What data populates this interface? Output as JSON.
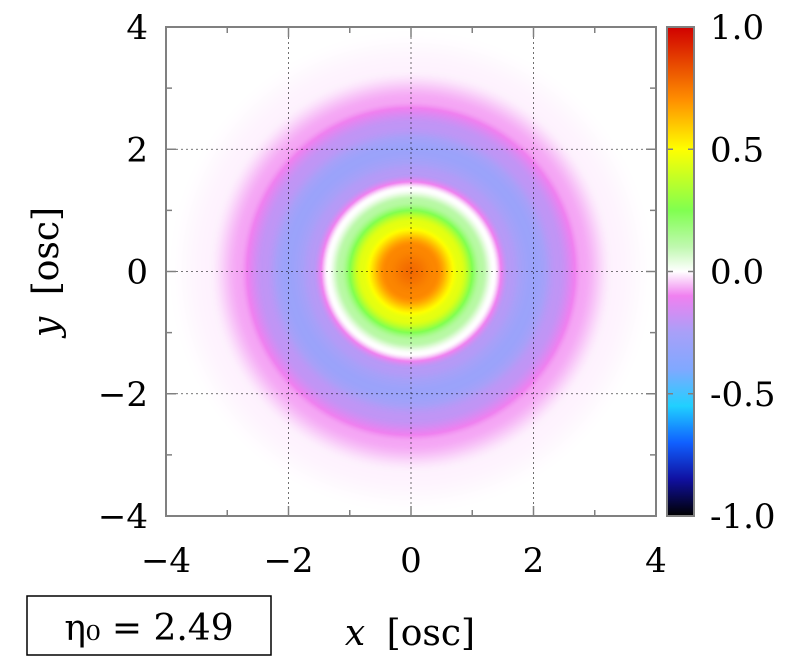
{
  "chart_data": {
    "type": "heatmap",
    "title": "",
    "xlabel": {
      "var": "x",
      "unit": "[osc]"
    },
    "ylabel": {
      "var": "y",
      "unit": "[osc]"
    },
    "xlim": [
      -4,
      4
    ],
    "ylim": [
      -4,
      4
    ],
    "x_ticks": [
      -4,
      -2,
      0,
      2,
      4
    ],
    "y_ticks": [
      -4,
      -2,
      0,
      2,
      4
    ],
    "x_tick_labels": [
      "−4",
      "−2",
      "0",
      "2",
      "4"
    ],
    "y_tick_labels": [
      "−4",
      "−2",
      "0",
      "2",
      "4"
    ],
    "grid": true,
    "colorbar": {
      "range": [
        -1.0,
        1.0
      ],
      "ticks": [
        1.0,
        0.5,
        0.0,
        -0.5,
        -1.0
      ],
      "tick_labels": [
        "1.0",
        "0.5",
        "0.0",
        "-0.5",
        "-1.0"
      ],
      "colors": [
        {
          "v": -1.0,
          "c": "#000000"
        },
        {
          "v": -0.85,
          "c": "#1010a0"
        },
        {
          "v": -0.7,
          "c": "#1060ff"
        },
        {
          "v": -0.55,
          "c": "#20d0ff"
        },
        {
          "v": -0.4,
          "c": "#80a8ff"
        },
        {
          "v": -0.25,
          "c": "#a8a0f8"
        },
        {
          "v": -0.1,
          "c": "#f080f0"
        },
        {
          "v": 0.0,
          "c": "#ffffff"
        },
        {
          "v": 0.1,
          "c": "#c0f8b0"
        },
        {
          "v": 0.25,
          "c": "#80ff50"
        },
        {
          "v": 0.5,
          "c": "#ffff00"
        },
        {
          "v": 0.7,
          "c": "#ff9000"
        },
        {
          "v": 1.0,
          "c": "#d00000"
        }
      ]
    },
    "field": {
      "description_points": [
        {
          "r": 0.0,
          "value": 0.78
        },
        {
          "r": 0.4,
          "value": 0.72
        },
        {
          "r": 0.8,
          "value": 0.45
        },
        {
          "r": 1.15,
          "value": 0.12
        },
        {
          "r": 1.35,
          "value": 0.0
        },
        {
          "r": 1.6,
          "value": -0.22
        },
        {
          "r": 2.0,
          "value": -0.3
        },
        {
          "r": 2.4,
          "value": -0.2
        },
        {
          "r": 2.8,
          "value": -0.07
        },
        {
          "r": 3.3,
          "value": -0.01
        },
        {
          "r": 4.0,
          "value": 0.0
        }
      ]
    },
    "annotation": {
      "label": "η₀ = 2.49"
    }
  }
}
